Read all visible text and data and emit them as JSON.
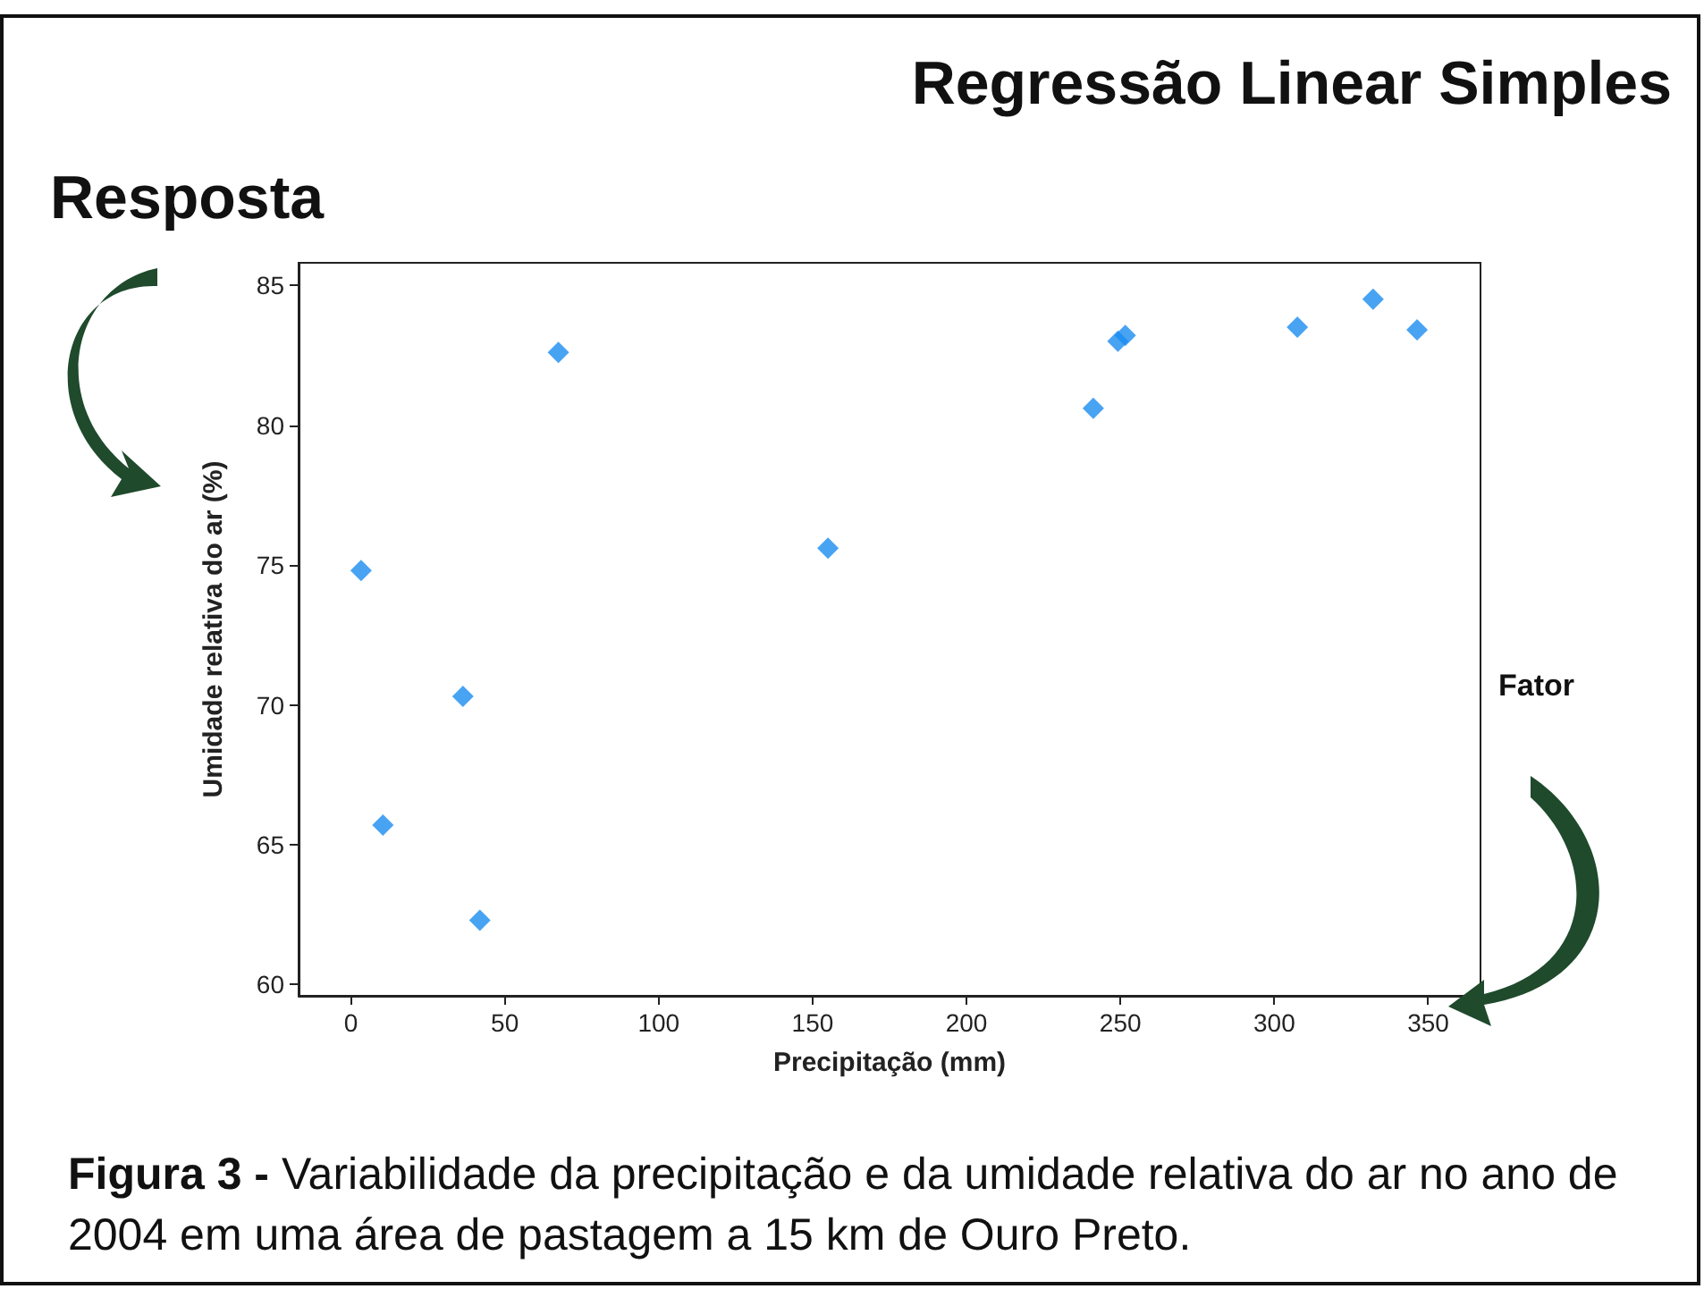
{
  "chart_data": {
    "type": "scatter",
    "title": "Regressão Linear Simples",
    "xlabel": "Precipitação (mm)",
    "ylabel": "Umidade relativa do ar (%)",
    "annotations": [
      "Resposta",
      "Fator",
      "Figura 3 -",
      "Variabilidade da precipitação e da umidade relativa do ar no ano de 2004  em uma área de pastagem a 15 km de Ouro Preto."
    ],
    "x": [
      3.3,
      10.4,
      36.4,
      41.9,
      67.4,
      155,
      241.2,
      249.2,
      251.6,
      307.5,
      332.1,
      346.4
    ],
    "values": [
      74.8,
      65.7,
      70.3,
      62.3,
      82.6,
      75.6,
      80.6,
      83.0,
      83.2,
      83.5,
      84.5,
      83.4
    ],
    "color": "#1a8cf0",
    "marker": "diamond",
    "grid": false,
    "xlim": [
      -17,
      367
    ],
    "xticks": [
      0,
      50,
      100,
      150,
      200,
      250,
      300,
      350
    ],
    "ylim": [
      59.6,
      85.8
    ],
    "yticks": [
      60,
      65,
      70,
      75,
      80,
      85
    ]
  }
}
